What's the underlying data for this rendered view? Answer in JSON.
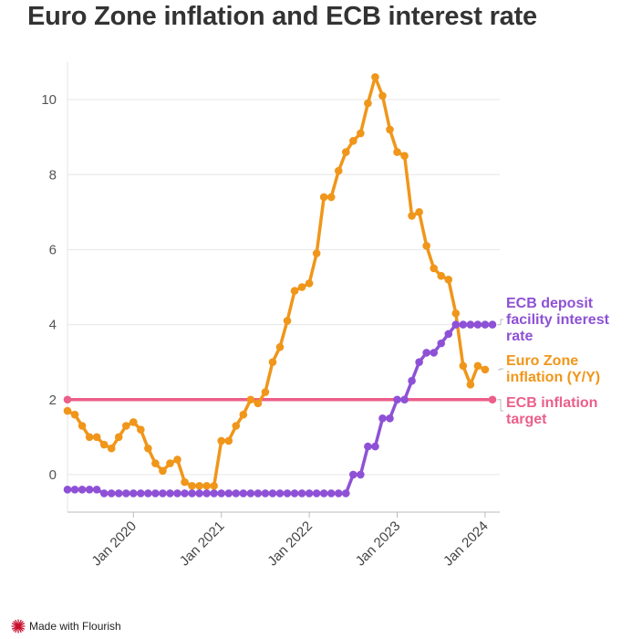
{
  "page": {
    "title": "Euro Zone inflation and ECB interest rate",
    "footer": "Made with Flourish"
  },
  "colors": {
    "inflation": "#F0961A",
    "deposit_rate": "#8E51D6",
    "target": "#EB5F8A",
    "grid": "#E6E6E6",
    "axis": "#BBBBBB"
  },
  "chart_data": {
    "type": "line",
    "title": "Euro Zone inflation and ECB interest rate",
    "xlabel": "",
    "ylabel": "",
    "x_range": [
      "2019-04",
      "2024-03"
    ],
    "ylim": [
      -1,
      11
    ],
    "y_ticks": [
      0,
      2,
      4,
      6,
      8,
      10
    ],
    "x_ticks": [
      {
        "date": "2020-01",
        "label": "Jan 2020"
      },
      {
        "date": "2021-01",
        "label": "Jan 2021"
      },
      {
        "date": "2022-01",
        "label": "Jan 2022"
      },
      {
        "date": "2023-01",
        "label": "Jan 2023"
      },
      {
        "date": "2024-01",
        "label": "Jan 2024"
      }
    ],
    "grid": true,
    "legend": "inline labels at line ends",
    "series": [
      {
        "key": "inflation",
        "name": "Euro Zone inflation (Y/Y)",
        "label_lines": [
          "Euro Zone",
          "inflation (Y/Y)"
        ],
        "color": "#F0961A",
        "points": [
          [
            "2019-04",
            1.7
          ],
          [
            "2019-05",
            1.6
          ],
          [
            "2019-06",
            1.3
          ],
          [
            "2019-07",
            1.0
          ],
          [
            "2019-08",
            1.0
          ],
          [
            "2019-09",
            0.8
          ],
          [
            "2019-10",
            0.7
          ],
          [
            "2019-11",
            1.0
          ],
          [
            "2019-12",
            1.3
          ],
          [
            "2020-01",
            1.4
          ],
          [
            "2020-02",
            1.2
          ],
          [
            "2020-03",
            0.7
          ],
          [
            "2020-04",
            0.3
          ],
          [
            "2020-05",
            0.1
          ],
          [
            "2020-06",
            0.3
          ],
          [
            "2020-07",
            0.4
          ],
          [
            "2020-08",
            -0.2
          ],
          [
            "2020-09",
            -0.3
          ],
          [
            "2020-10",
            -0.3
          ],
          [
            "2020-11",
            -0.3
          ],
          [
            "2020-12",
            -0.3
          ],
          [
            "2021-01",
            0.9
          ],
          [
            "2021-02",
            0.9
          ],
          [
            "2021-03",
            1.3
          ],
          [
            "2021-04",
            1.6
          ],
          [
            "2021-05",
            2.0
          ],
          [
            "2021-06",
            1.9
          ],
          [
            "2021-07",
            2.2
          ],
          [
            "2021-08",
            3.0
          ],
          [
            "2021-09",
            3.4
          ],
          [
            "2021-10",
            4.1
          ],
          [
            "2021-11",
            4.9
          ],
          [
            "2021-12",
            5.0
          ],
          [
            "2022-01",
            5.1
          ],
          [
            "2022-02",
            5.9
          ],
          [
            "2022-03",
            7.4
          ],
          [
            "2022-04",
            7.4
          ],
          [
            "2022-05",
            8.1
          ],
          [
            "2022-06",
            8.6
          ],
          [
            "2022-07",
            8.9
          ],
          [
            "2022-08",
            9.1
          ],
          [
            "2022-09",
            9.9
          ],
          [
            "2022-10",
            10.6
          ],
          [
            "2022-11",
            10.1
          ],
          [
            "2022-12",
            9.2
          ],
          [
            "2023-01",
            8.6
          ],
          [
            "2023-02",
            8.5
          ],
          [
            "2023-03",
            6.9
          ],
          [
            "2023-04",
            7.0
          ],
          [
            "2023-05",
            6.1
          ],
          [
            "2023-06",
            5.5
          ],
          [
            "2023-07",
            5.3
          ],
          [
            "2023-08",
            5.2
          ],
          [
            "2023-09",
            4.3
          ],
          [
            "2023-10",
            2.9
          ],
          [
            "2023-11",
            2.4
          ],
          [
            "2023-12",
            2.9
          ],
          [
            "2024-01",
            2.8
          ]
        ]
      },
      {
        "key": "deposit_rate",
        "name": "ECB deposit facility interest rate",
        "label_lines": [
          "ECB deposit",
          "facility interest",
          "rate"
        ],
        "color": "#8E51D6",
        "points": [
          [
            "2019-04",
            -0.4
          ],
          [
            "2019-05",
            -0.4
          ],
          [
            "2019-06",
            -0.4
          ],
          [
            "2019-07",
            -0.4
          ],
          [
            "2019-08",
            -0.4
          ],
          [
            "2019-09",
            -0.5
          ],
          [
            "2019-10",
            -0.5
          ],
          [
            "2019-11",
            -0.5
          ],
          [
            "2019-12",
            -0.5
          ],
          [
            "2020-01",
            -0.5
          ],
          [
            "2020-02",
            -0.5
          ],
          [
            "2020-03",
            -0.5
          ],
          [
            "2020-04",
            -0.5
          ],
          [
            "2020-05",
            -0.5
          ],
          [
            "2020-06",
            -0.5
          ],
          [
            "2020-07",
            -0.5
          ],
          [
            "2020-08",
            -0.5
          ],
          [
            "2020-09",
            -0.5
          ],
          [
            "2020-10",
            -0.5
          ],
          [
            "2020-11",
            -0.5
          ],
          [
            "2020-12",
            -0.5
          ],
          [
            "2021-01",
            -0.5
          ],
          [
            "2021-02",
            -0.5
          ],
          [
            "2021-03",
            -0.5
          ],
          [
            "2021-04",
            -0.5
          ],
          [
            "2021-05",
            -0.5
          ],
          [
            "2021-06",
            -0.5
          ],
          [
            "2021-07",
            -0.5
          ],
          [
            "2021-08",
            -0.5
          ],
          [
            "2021-09",
            -0.5
          ],
          [
            "2021-10",
            -0.5
          ],
          [
            "2021-11",
            -0.5
          ],
          [
            "2021-12",
            -0.5
          ],
          [
            "2022-01",
            -0.5
          ],
          [
            "2022-02",
            -0.5
          ],
          [
            "2022-03",
            -0.5
          ],
          [
            "2022-04",
            -0.5
          ],
          [
            "2022-05",
            -0.5
          ],
          [
            "2022-06",
            -0.5
          ],
          [
            "2022-07",
            0.0
          ],
          [
            "2022-08",
            0.0
          ],
          [
            "2022-09",
            0.75
          ],
          [
            "2022-10",
            0.75
          ],
          [
            "2022-11",
            1.5
          ],
          [
            "2022-12",
            1.5
          ],
          [
            "2023-01",
            2.0
          ],
          [
            "2023-02",
            2.0
          ],
          [
            "2023-03",
            2.5
          ],
          [
            "2023-04",
            3.0
          ],
          [
            "2023-05",
            3.25
          ],
          [
            "2023-06",
            3.25
          ],
          [
            "2023-07",
            3.5
          ],
          [
            "2023-08",
            3.75
          ],
          [
            "2023-09",
            4.0
          ],
          [
            "2023-10",
            4.0
          ],
          [
            "2023-11",
            4.0
          ],
          [
            "2023-12",
            4.0
          ],
          [
            "2024-01",
            4.0
          ],
          [
            "2024-02",
            4.0
          ]
        ]
      },
      {
        "key": "target",
        "name": "ECB inflation target",
        "label_lines": [
          "ECB inflation",
          "target"
        ],
        "color": "#EB5F8A",
        "points": [
          [
            "2019-04",
            2.0
          ],
          [
            "2024-02",
            2.0
          ]
        ]
      }
    ]
  }
}
